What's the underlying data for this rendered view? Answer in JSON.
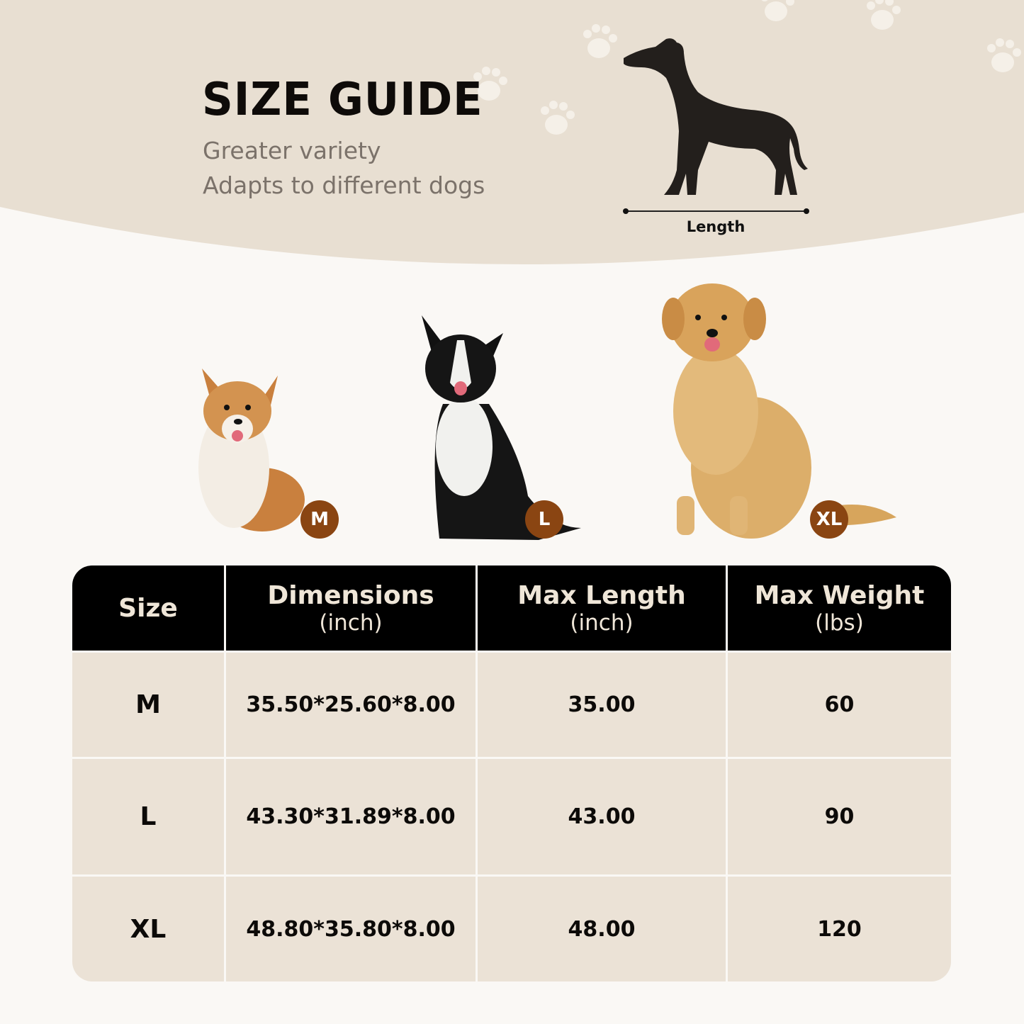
{
  "header": {
    "title": "SIZE GUIDE",
    "subtitle_lines": [
      "Greater variety",
      "Adapts to different dogs"
    ],
    "diagram": {
      "icon": "dog-silhouette-icon",
      "measure_label": "Length"
    }
  },
  "dogs": [
    {
      "breed_icon": "corgi-photo",
      "size_badge": "M"
    },
    {
      "breed_icon": "border-collie-photo",
      "size_badge": "L"
    },
    {
      "breed_icon": "golden-retriever-photo",
      "size_badge": "XL"
    }
  ],
  "table": {
    "headers": [
      {
        "label": "Size",
        "unit": ""
      },
      {
        "label": "Dimensions",
        "unit": "(inch)"
      },
      {
        "label": "Max Length",
        "unit": "(inch)"
      },
      {
        "label": "Max Weight",
        "unit": "(lbs)"
      }
    ],
    "rows": [
      [
        "M",
        "35.50*25.60*8.00",
        "35.00",
        "60"
      ],
      [
        "L",
        "43.30*31.89*8.00",
        "43.00",
        "90"
      ],
      [
        "XL",
        "48.80*35.80*8.00",
        "48.00",
        "120"
      ]
    ]
  },
  "colors": {
    "header_bg": "#e8dfd2",
    "cell_bg": "#ebe2d6",
    "badge": "#8a4512",
    "table_header": "#000000"
  }
}
